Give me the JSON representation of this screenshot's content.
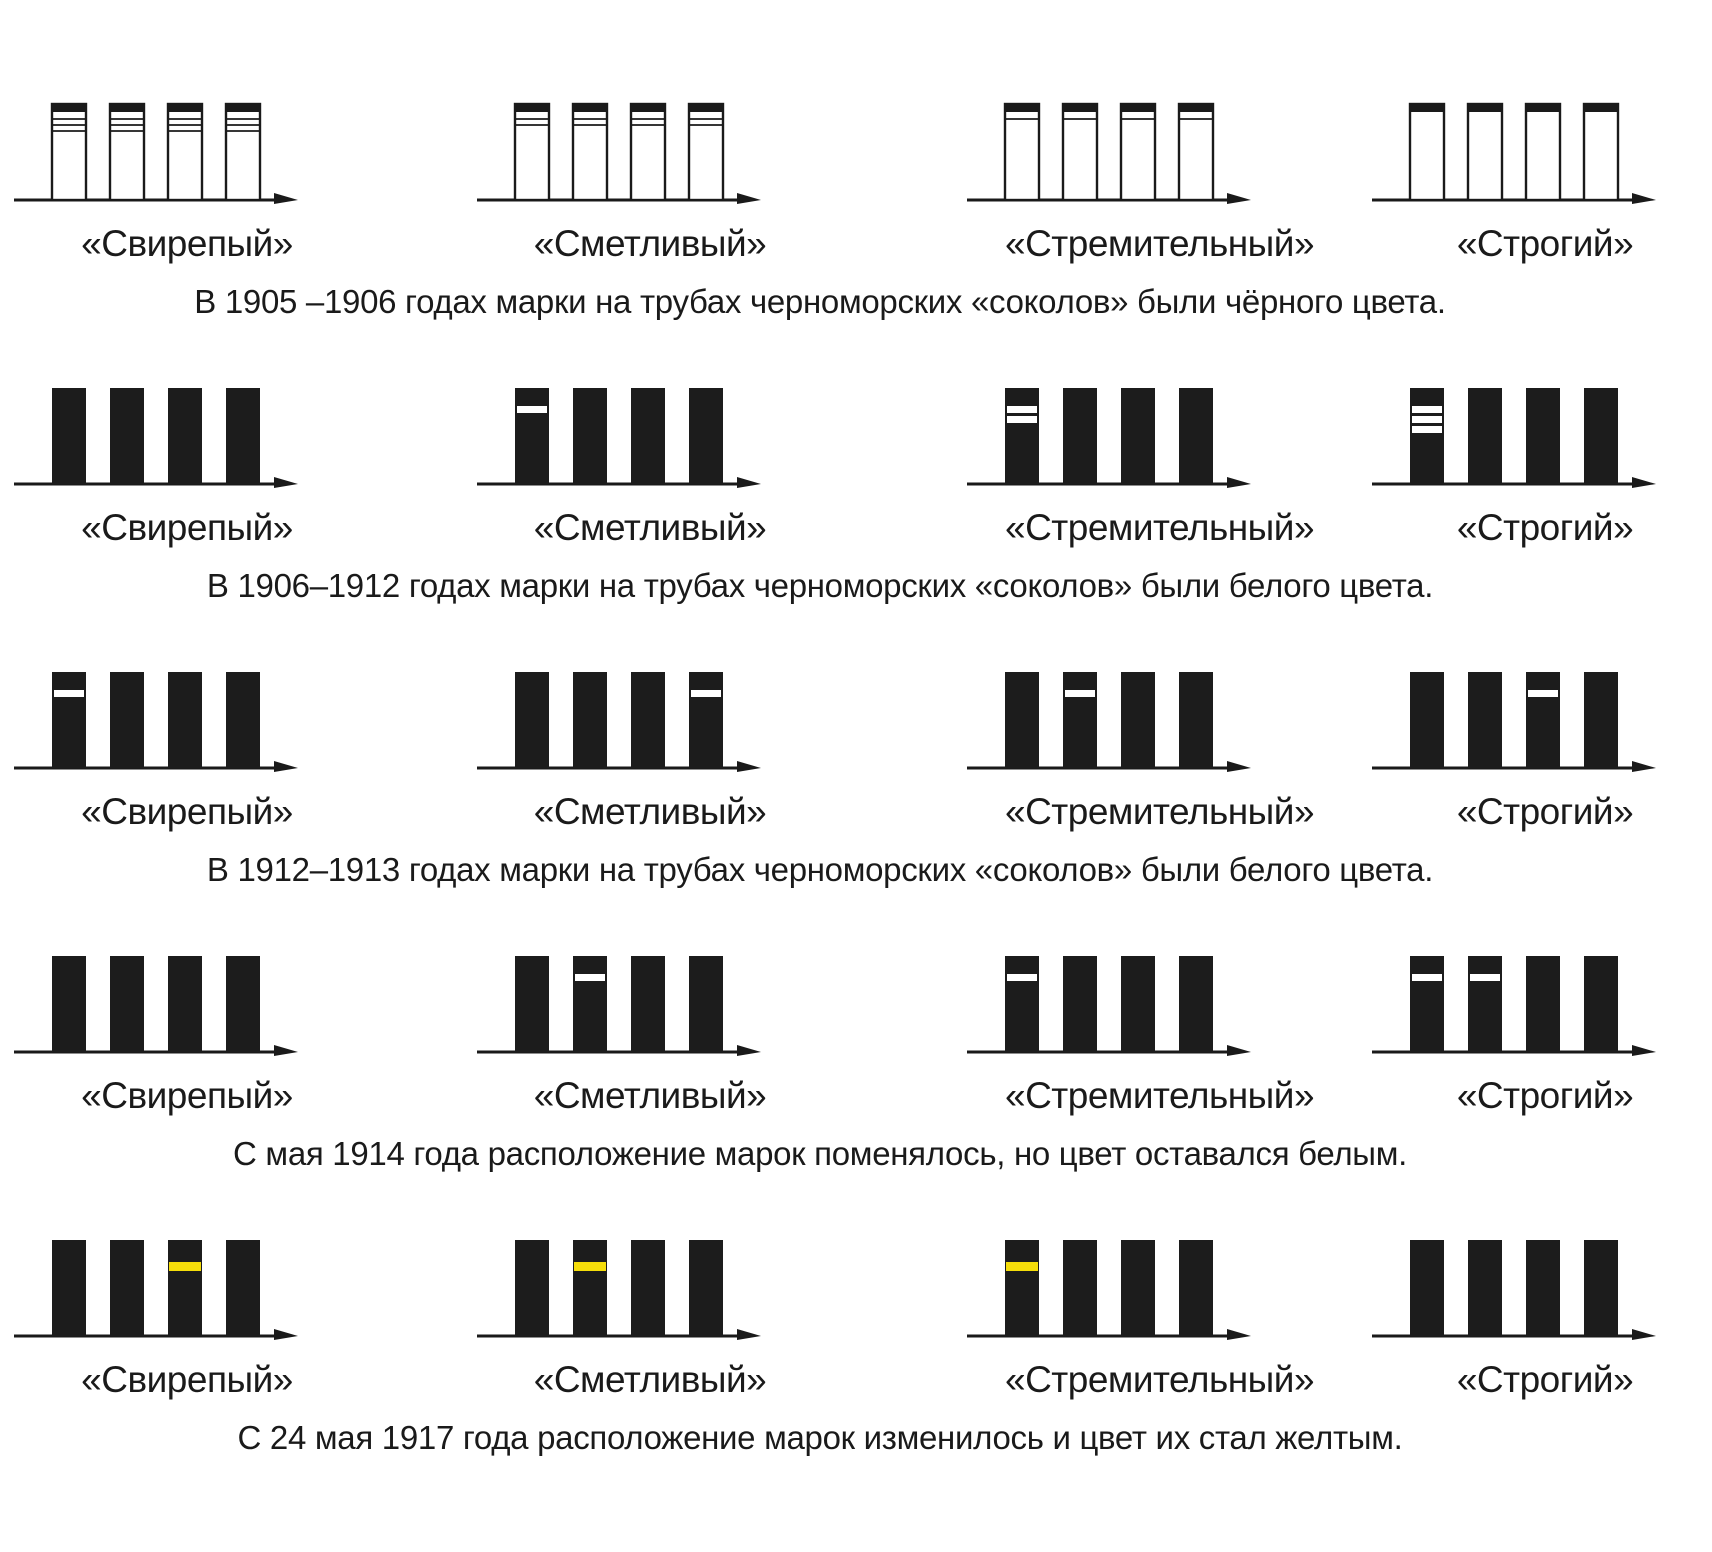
{
  "colors": {
    "funnel": "#1c1c1c",
    "white_mark": "#ffffff",
    "yellow_mark": "#f5dd0a",
    "ink": "#1a1a1a"
  },
  "periods": [
    {
      "caption": "В 1905 –1906 годах марки на трубах черноморских «соколов» были чёрного цвета.",
      "funnel_fill": "white",
      "mark_color": "black",
      "ships": [
        {
          "name": "«Свирепый»",
          "marks": [
            3,
            3,
            3,
            3
          ]
        },
        {
          "name": "«Сметливый»",
          "marks": [
            2,
            2,
            2,
            2
          ]
        },
        {
          "name": "«Стремительный»",
          "marks": [
            1,
            1,
            1,
            1
          ]
        },
        {
          "name": "«Строгий»",
          "marks": [
            0,
            0,
            0,
            0
          ]
        }
      ]
    },
    {
      "caption": "В 1906–1912 годах марки на трубах черноморских «соколов» были белого цвета.",
      "funnel_fill": "black",
      "mark_color": "white",
      "ships": [
        {
          "name": "«Свирепый»",
          "marks": [
            0,
            0,
            0,
            0
          ]
        },
        {
          "name": "«Сметливый»",
          "marks": [
            1,
            0,
            0,
            0
          ]
        },
        {
          "name": "«Стремительный»",
          "marks": [
            2,
            0,
            0,
            0
          ]
        },
        {
          "name": "«Строгий»",
          "marks": [
            3,
            0,
            0,
            0
          ]
        }
      ]
    },
    {
      "caption": "В 1912–1913 годах марки на трубах черноморских «соколов» были белого цвета.",
      "funnel_fill": "black",
      "mark_color": "white",
      "ships": [
        {
          "name": "«Свирепый»",
          "marks": [
            1,
            0,
            0,
            0
          ]
        },
        {
          "name": "«Сметливый»",
          "marks": [
            0,
            0,
            0,
            1
          ]
        },
        {
          "name": "«Стремительный»",
          "marks": [
            0,
            1,
            0,
            0
          ]
        },
        {
          "name": "«Строгий»",
          "marks": [
            0,
            0,
            1,
            0
          ]
        }
      ]
    },
    {
      "caption": "С мая 1914 года расположение марок поменялось, но цвет оставался белым.",
      "funnel_fill": "black",
      "mark_color": "white",
      "ships": [
        {
          "name": "«Свирепый»",
          "marks": [
            0,
            0,
            0,
            0
          ]
        },
        {
          "name": "«Сметливый»",
          "marks": [
            0,
            1,
            0,
            0
          ]
        },
        {
          "name": "«Стремительный»",
          "marks": [
            1,
            0,
            0,
            0
          ]
        },
        {
          "name": "«Строгий»",
          "marks": [
            1,
            1,
            0,
            0
          ]
        }
      ]
    },
    {
      "caption": "С 24 мая 1917 года расположение марок изменилось и цвет их стал желтым.",
      "funnel_fill": "black",
      "mark_color": "yellow",
      "ships": [
        {
          "name": "«Свирепый»",
          "marks": [
            0,
            0,
            1,
            0
          ]
        },
        {
          "name": "«Сметливый»",
          "marks": [
            0,
            1,
            0,
            0
          ]
        },
        {
          "name": "«Стремительный»",
          "marks": [
            1,
            0,
            0,
            0
          ]
        },
        {
          "name": "«Строгий»",
          "marks": [
            0,
            0,
            0,
            0
          ]
        }
      ]
    }
  ]
}
